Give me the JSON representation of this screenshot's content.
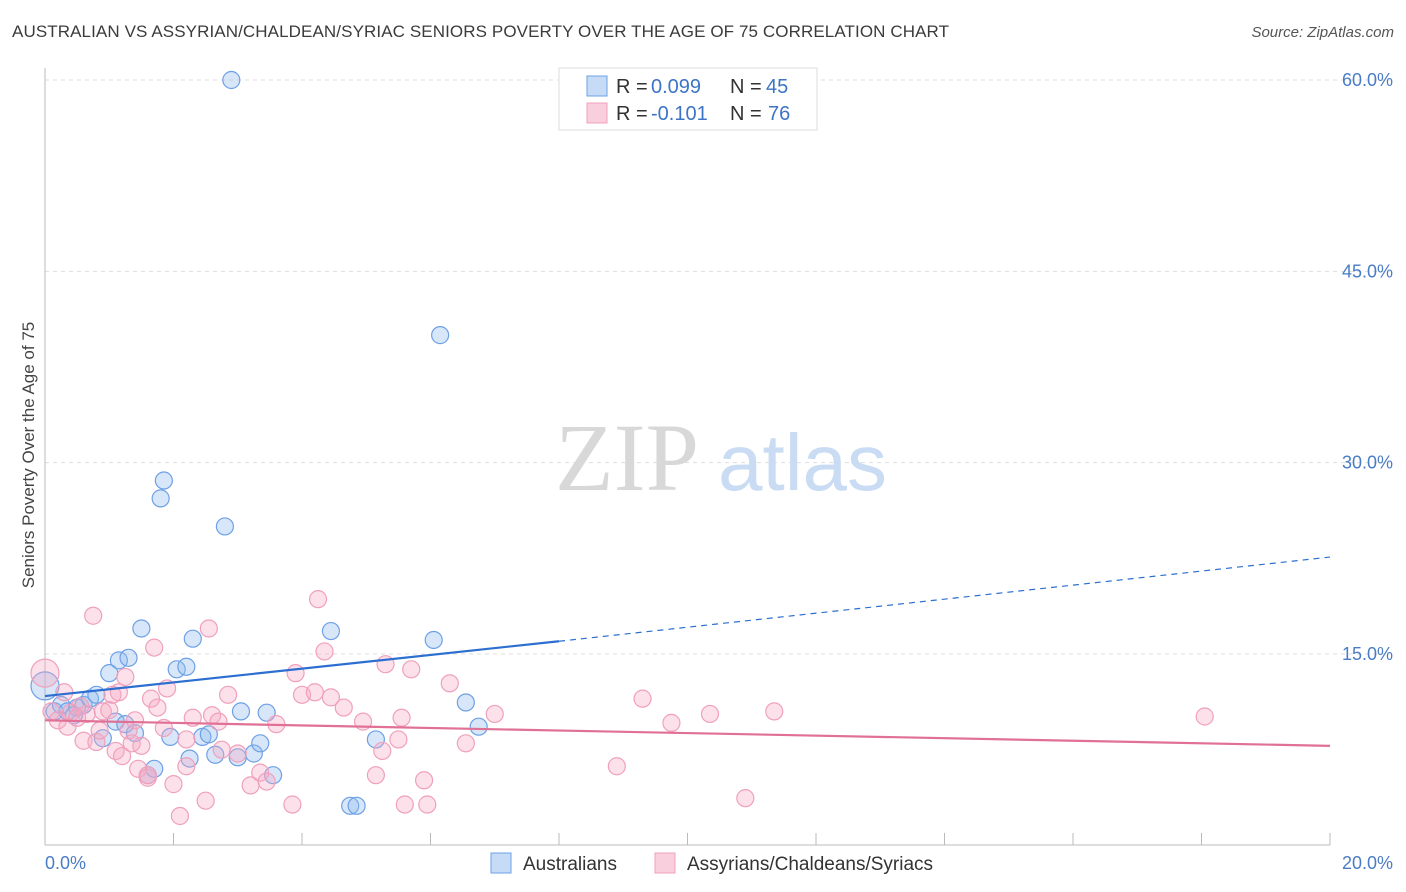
{
  "header": {
    "title": "AUSTRALIAN VS ASSYRIAN/CHALDEAN/SYRIAC SENIORS POVERTY OVER THE AGE OF 75 CORRELATION CHART",
    "source": "Source: ZipAtlas.com"
  },
  "watermark": {
    "zip": "ZIP",
    "atlas": "atlas"
  },
  "legend_top": {
    "rows": [
      {
        "r_label": "R =",
        "r_value": "0.099",
        "n_label": "N =",
        "n_value": "45",
        "color": "#6ea0e6"
      },
      {
        "r_label": "R =",
        "r_value": "-0.101",
        "n_label": "N =",
        "n_value": "76",
        "color": "#f0a0bc"
      }
    ]
  },
  "legend_bottom": {
    "items": [
      {
        "label": "Australians",
        "color": "#6ea0e6"
      },
      {
        "label": "Assyrians/Chaldeans/Syriacs",
        "color": "#f0a0bc"
      }
    ]
  },
  "chart_data": {
    "type": "scatter",
    "title": "AUSTRALIAN VS ASSYRIAN/CHALDEAN/SYRIAC SENIORS POVERTY OVER THE AGE OF 75 CORRELATION CHART",
    "xlabel": "",
    "ylabel": "Seniors Poverty Over the Age of 75",
    "xlim": [
      0,
      20
    ],
    "ylim": [
      0,
      62
    ],
    "x_tick_labels": [
      "0.0%",
      "20.0%"
    ],
    "y_ticks": [
      15,
      30,
      45,
      60
    ],
    "y_tick_labels": [
      "15.0%",
      "30.0%",
      "45.0%",
      "60.0%"
    ],
    "grid": true,
    "legend_placement": "top-center",
    "series": [
      {
        "name": "Australians",
        "color": "#6ea0e6",
        "points": [
          [
            0.0,
            12.5
          ],
          [
            0.15,
            10.5
          ],
          [
            0.25,
            11.0
          ],
          [
            0.35,
            10.5
          ],
          [
            0.5,
            10.8
          ],
          [
            0.6,
            11.0
          ],
          [
            0.7,
            11.5
          ],
          [
            0.8,
            11.8
          ],
          [
            0.9,
            8.4
          ],
          [
            1.0,
            13.5
          ],
          [
            1.1,
            9.7
          ],
          [
            1.15,
            14.5
          ],
          [
            1.25,
            9.5
          ],
          [
            1.3,
            14.7
          ],
          [
            1.4,
            8.8
          ],
          [
            1.5,
            17.0
          ],
          [
            1.6,
            5.5
          ],
          [
            1.7,
            6.0
          ],
          [
            1.8,
            27.2
          ],
          [
            1.85,
            28.6
          ],
          [
            1.95,
            8.5
          ],
          [
            2.05,
            13.8
          ],
          [
            2.2,
            14.0
          ],
          [
            2.25,
            6.8
          ],
          [
            2.3,
            16.2
          ],
          [
            2.45,
            8.5
          ],
          [
            2.55,
            8.7
          ],
          [
            2.65,
            7.1
          ],
          [
            2.8,
            25.0
          ],
          [
            2.9,
            60.0
          ],
          [
            3.0,
            6.9
          ],
          [
            3.05,
            10.5
          ],
          [
            3.25,
            7.2
          ],
          [
            3.35,
            8.0
          ],
          [
            3.45,
            10.4
          ],
          [
            3.55,
            5.5
          ],
          [
            4.45,
            16.8
          ],
          [
            4.75,
            3.1
          ],
          [
            4.85,
            3.1
          ],
          [
            5.15,
            8.3
          ],
          [
            6.05,
            16.1
          ],
          [
            6.15,
            40.0
          ],
          [
            6.55,
            11.2
          ],
          [
            6.75,
            9.3
          ],
          [
            0.45,
            10.2
          ]
        ]
      },
      {
        "name": "Assyrians/Chaldeans/Syriacs",
        "color": "#f0a0bc",
        "points": [
          [
            0.0,
            13.5
          ],
          [
            0.1,
            10.5
          ],
          [
            0.2,
            9.8
          ],
          [
            0.3,
            12.0
          ],
          [
            0.35,
            9.3
          ],
          [
            0.4,
            10.4
          ],
          [
            0.5,
            10.0
          ],
          [
            0.6,
            8.2
          ],
          [
            0.65,
            10.3
          ],
          [
            0.75,
            18.0
          ],
          [
            0.8,
            8.1
          ],
          [
            0.85,
            9.0
          ],
          [
            0.9,
            10.5
          ],
          [
            1.0,
            10.6
          ],
          [
            1.05,
            11.8
          ],
          [
            1.1,
            7.4
          ],
          [
            1.15,
            12.0
          ],
          [
            1.2,
            7.0
          ],
          [
            1.25,
            13.2
          ],
          [
            1.3,
            9.0
          ],
          [
            1.35,
            8.0
          ],
          [
            1.4,
            9.8
          ],
          [
            1.45,
            6.0
          ],
          [
            1.5,
            7.8
          ],
          [
            1.6,
            5.3
          ],
          [
            1.65,
            11.5
          ],
          [
            1.7,
            15.5
          ],
          [
            1.75,
            10.8
          ],
          [
            1.85,
            9.2
          ],
          [
            1.9,
            12.3
          ],
          [
            2.0,
            4.8
          ],
          [
            2.1,
            2.3
          ],
          [
            2.2,
            8.3
          ],
          [
            2.2,
            6.2
          ],
          [
            2.3,
            10.0
          ],
          [
            2.5,
            3.5
          ],
          [
            2.55,
            17.0
          ],
          [
            2.6,
            10.2
          ],
          [
            2.7,
            9.7
          ],
          [
            2.75,
            7.5
          ],
          [
            2.85,
            11.8
          ],
          [
            3.0,
            7.2
          ],
          [
            3.2,
            4.7
          ],
          [
            3.35,
            5.7
          ],
          [
            3.45,
            5.0
          ],
          [
            3.6,
            9.5
          ],
          [
            3.85,
            3.2
          ],
          [
            3.9,
            13.5
          ],
          [
            4.0,
            11.8
          ],
          [
            4.2,
            12.0
          ],
          [
            4.25,
            19.3
          ],
          [
            4.35,
            15.2
          ],
          [
            4.45,
            11.6
          ],
          [
            4.65,
            10.8
          ],
          [
            4.95,
            9.7
          ],
          [
            5.15,
            5.5
          ],
          [
            5.25,
            7.4
          ],
          [
            5.3,
            14.2
          ],
          [
            5.5,
            8.3
          ],
          [
            5.55,
            10.0
          ],
          [
            5.6,
            3.2
          ],
          [
            5.7,
            13.8
          ],
          [
            5.9,
            5.1
          ],
          [
            5.95,
            3.2
          ],
          [
            6.3,
            12.7
          ],
          [
            6.55,
            8.0
          ],
          [
            7.0,
            10.3
          ],
          [
            8.9,
            6.2
          ],
          [
            9.3,
            11.5
          ],
          [
            9.75,
            9.6
          ],
          [
            10.35,
            10.3
          ],
          [
            10.9,
            3.7
          ],
          [
            11.35,
            10.5
          ],
          [
            18.05,
            10.1
          ],
          [
            1.6,
            5.5
          ],
          [
            0.55,
            10.9
          ]
        ]
      }
    ],
    "trend_lines": [
      {
        "series": "Australians",
        "color": "#2c6fd1",
        "solid": [
          [
            0,
            11.7
          ],
          [
            8.0,
            16.0
          ]
        ],
        "dashed": [
          [
            8.0,
            16.0
          ],
          [
            20.0,
            22.6
          ]
        ]
      },
      {
        "series": "Assyrians/Chaldeans/Syriacs",
        "color": "#e07096",
        "solid": [
          [
            0,
            9.8
          ],
          [
            20.0,
            7.8
          ]
        ]
      }
    ]
  }
}
